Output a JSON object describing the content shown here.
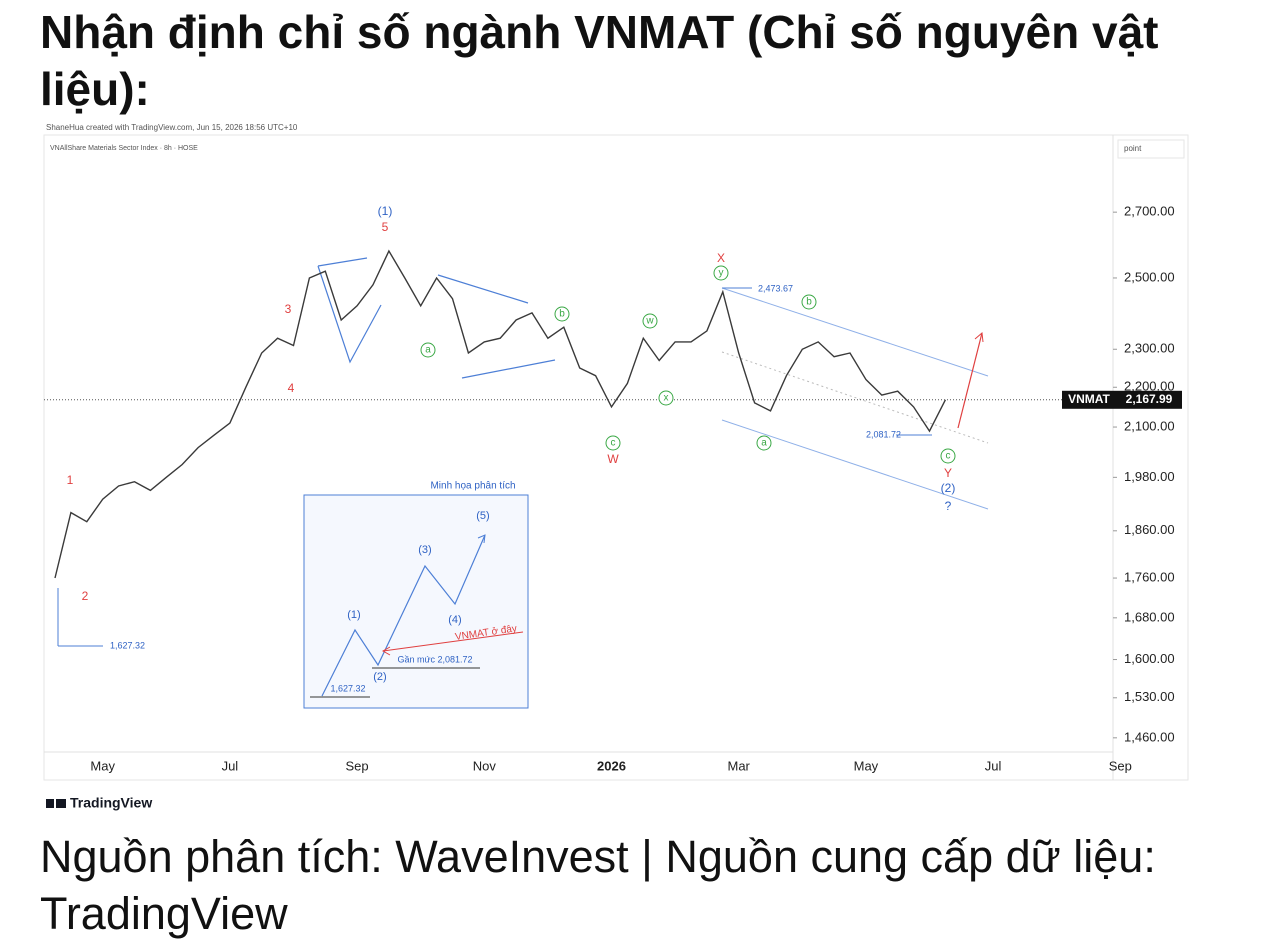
{
  "title": "Nhận định chỉ số ngành VNMAT (Chỉ số nguyên vật liệu):",
  "footer": "Nguồn phân tích: WaveInvest | Nguồn cung cấp dữ liệu: TradingView",
  "chart_data": {
    "type": "line",
    "credit": "ShaneHua created with TradingView.com, Jun 15, 2026 18:56 UTC+10",
    "subtitle": "VNAllShare Materials Sector Index · 8h · HOSE",
    "axis_unit": "point",
    "brand": "TradingView",
    "log_scale": true,
    "categories": [
      null,
      null,
      null,
      "May",
      null,
      null,
      null,
      null,
      null,
      null,
      null,
      "Jul",
      null,
      null,
      null,
      null,
      null,
      null,
      null,
      "Sep",
      null,
      null,
      null,
      null,
      null,
      null,
      null,
      "Nov",
      null,
      null,
      null,
      null,
      null,
      null,
      null,
      "2026",
      null,
      null,
      null,
      null,
      null,
      null,
      null,
      "Mar",
      null,
      null,
      null,
      null,
      null,
      null,
      null,
      "May",
      null,
      null,
      null,
      null,
      null,
      null,
      null,
      "Jul",
      null,
      null,
      null,
      null,
      null,
      null,
      null,
      "Sep"
    ],
    "series": [
      {
        "name": "VNMAT",
        "color": "#3a3a3a",
        "values": [
          1760,
          1900,
          1880,
          1930,
          1960,
          1970,
          1950,
          1980,
          2010,
          2050,
          2080,
          2110,
          2200,
          2290,
          2330,
          2310,
          2500,
          2520,
          2380,
          2420,
          2480,
          2580,
          2500,
          2420,
          2500,
          2440,
          2290,
          2320,
          2330,
          2380,
          2400,
          2330,
          2360,
          2250,
          2230,
          2150,
          2210,
          2330,
          2270,
          2320,
          2320,
          2350,
          2460,
          2290,
          2160,
          2140,
          2230,
          2300,
          2320,
          2280,
          2290,
          2220,
          2180,
          2190,
          2150,
          2090,
          2167.99,
          null,
          null,
          null,
          null,
          null,
          null,
          null,
          null,
          null,
          null,
          null
        ]
      }
    ],
    "last_price": {
      "value": 2167.99,
      "label": "2,167.99"
    },
    "ylim": [
      1436,
      2955
    ],
    "yticks": [
      {
        "value": 1460,
        "label": "1,460.00"
      },
      {
        "value": 1530,
        "label": "1,530.00"
      },
      {
        "value": 1600,
        "label": "1,600.00"
      },
      {
        "value": 1680,
        "label": "1,680.00"
      },
      {
        "value": 1760,
        "label": "1,760.00"
      },
      {
        "value": 1860,
        "label": "1,860.00"
      },
      {
        "value": 1980,
        "label": "1,980.00"
      },
      {
        "value": 2100,
        "label": "2,100.00"
      },
      {
        "value": 2200,
        "label": "2,200.00"
      },
      {
        "value": 2300,
        "label": "2,300.00"
      },
      {
        "value": 2500,
        "label": "2,500.00"
      },
      {
        "value": 2700,
        "label": "2,700.00"
      }
    ],
    "annotations": [
      "(1)",
      "5",
      "3",
      "4",
      "1",
      "2",
      "a",
      "b",
      "c",
      "W",
      "w",
      "x",
      "y",
      "X",
      "a",
      "b",
      "c",
      "Y",
      "(2)",
      "?",
      "1,627.32",
      "2,473.67",
      "2,081.72",
      "Minh họa phân tích",
      "(1)",
      "(2)",
      "(3)",
      "(4)",
      "(5)",
      "VNMAT ở đây",
      "Gần mức 2,081.72",
      "1,627.32"
    ]
  }
}
